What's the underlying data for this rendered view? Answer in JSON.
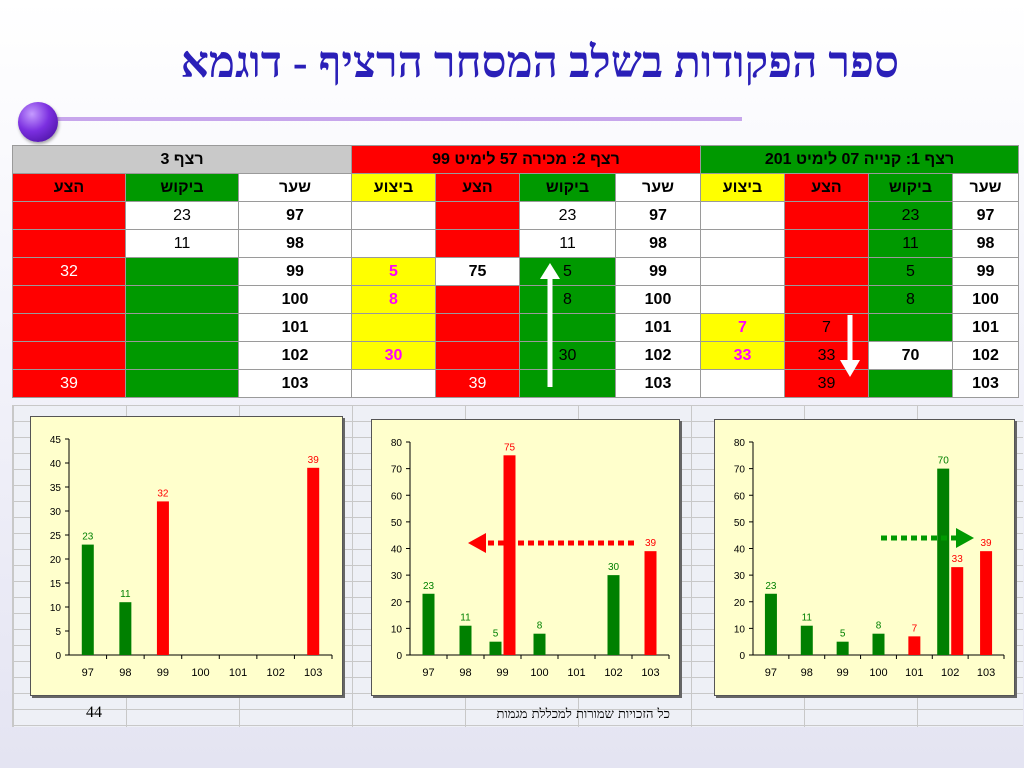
{
  "title": "ספר הפקודות בשלב המסחר הרציף - דוגמא",
  "headers": {
    "seq3": "רצף 3",
    "seq2": "רצף 2: מכירה 57 לימיט 99",
    "seq1": "רצף 1: קנייה 07 לימיט 201"
  },
  "columns": {
    "price": "שער",
    "bid": "ביקוש",
    "ask": "הצע",
    "exec": "ביצוע"
  },
  "prices": [
    "97",
    "98",
    "99",
    "100",
    "101",
    "102",
    "103"
  ],
  "table_values": {
    "seq1_bid": [
      "23",
      "11",
      "5",
      "8",
      "",
      "70",
      ""
    ],
    "seq1_ask": [
      "",
      "",
      "",
      "",
      "7",
      "33",
      "39"
    ],
    "seq1_exec": [
      "",
      "",
      "",
      "",
      "7",
      "33",
      ""
    ],
    "seq2_bid": [
      "23",
      "11",
      "5",
      "8",
      "",
      "30",
      ""
    ],
    "seq2_ask": [
      "",
      "",
      "75",
      "",
      "",
      "",
      "39"
    ],
    "seq2_exec": [
      "",
      "",
      "5",
      "8",
      "",
      "30",
      ""
    ],
    "seq3_bid": [
      "23",
      "11",
      "",
      "",
      "",
      "",
      ""
    ],
    "seq3_ask": [
      "",
      "",
      "32",
      "",
      "",
      "",
      "39"
    ]
  },
  "chart_data": [
    {
      "type": "bar",
      "categories": [
        "97",
        "98",
        "99",
        "100",
        "101",
        "102",
        "103"
      ],
      "series": [
        {
          "values": [
            23,
            11,
            0,
            0,
            0,
            0,
            0
          ],
          "color": "#008000"
        },
        {
          "values": [
            0,
            0,
            32,
            0,
            0,
            0,
            39
          ],
          "color": "#ff0000"
        }
      ],
      "ylim": [
        0,
        45
      ],
      "yticks": [
        0,
        5,
        10,
        15,
        20,
        25,
        30,
        35,
        40,
        45
      ]
    },
    {
      "type": "bar",
      "categories": [
        "97",
        "98",
        "99",
        "100",
        "101",
        "102",
        "103"
      ],
      "series": [
        {
          "values": [
            23,
            11,
            5,
            8,
            0,
            30,
            0
          ],
          "color": "#008000"
        },
        {
          "values": [
            0,
            0,
            75,
            0,
            0,
            0,
            39
          ],
          "color": "#ff0000"
        }
      ],
      "ylim": [
        0,
        80
      ],
      "yticks": [
        0,
        10,
        20,
        30,
        40,
        50,
        60,
        70,
        80
      ]
    },
    {
      "type": "bar",
      "categories": [
        "97",
        "98",
        "99",
        "100",
        "101",
        "102",
        "103"
      ],
      "series": [
        {
          "values": [
            23,
            11,
            5,
            8,
            0,
            70,
            0
          ],
          "color": "#008000"
        },
        {
          "values": [
            0,
            0,
            0,
            0,
            7,
            33,
            39
          ],
          "color": "#ff0000"
        }
      ],
      "ylim": [
        0,
        80
      ],
      "yticks": [
        0,
        10,
        20,
        30,
        40,
        50,
        60,
        70,
        80
      ]
    }
  ],
  "footer": "כל הזכויות שמורות למכללת מגמות",
  "page_number": "44"
}
